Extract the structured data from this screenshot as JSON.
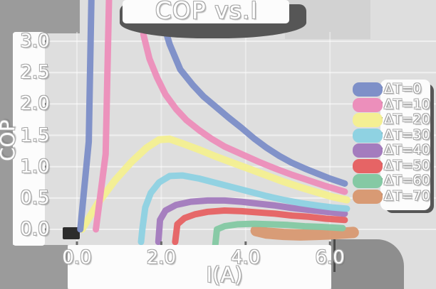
{
  "title": "COP vs.I",
  "x_axis": {
    "label": "I(A)",
    "ticks": [
      {
        "label": "0.0",
        "value": 0
      },
      {
        "label": "2.0",
        "value": 2
      },
      {
        "label": "4.0",
        "value": 4
      },
      {
        "label": "6.0",
        "value": 6
      }
    ]
  },
  "y_axis": {
    "label": "COP",
    "ticks": [
      {
        "label": "3.0",
        "value": 3.0
      },
      {
        "label": "2.5",
        "value": 2.5
      },
      {
        "label": "2.0",
        "value": 2.0
      },
      {
        "label": "1.5",
        "value": 1.5
      },
      {
        "label": "1.0",
        "value": 1.0
      },
      {
        "label": "0.5",
        "value": 0.5
      },
      {
        "label": "0.0",
        "value": 0.0
      }
    ]
  },
  "chart_data": {
    "type": "line",
    "title": "COP vs.I",
    "xlabel": "I(A)",
    "ylabel": "COP",
    "xlim": [
      -0.76,
      8.5
    ],
    "ylim": [
      -0.25,
      3.15
    ],
    "grid": true,
    "legend_position": "center right",
    "series": [
      {
        "name": "ΔT=0",
        "color": "#7e90c8",
        "stroke_width": 9,
        "points": [
          [
            0.08,
            0
          ],
          [
            0.28,
            1.4
          ],
          [
            0.36,
            4.3
          ],
          [
            1.85,
            4.3
          ],
          [
            2.02,
            3.35
          ],
          [
            2.2,
            2.95
          ],
          [
            2.45,
            2.55
          ],
          [
            2.75,
            2.3
          ],
          [
            3.0,
            2.12
          ],
          [
            3.3,
            1.95
          ],
          [
            3.6,
            1.78
          ],
          [
            3.9,
            1.62
          ],
          [
            4.2,
            1.45
          ],
          [
            4.5,
            1.3
          ],
          [
            4.8,
            1.17
          ],
          [
            5.1,
            1.06
          ],
          [
            5.4,
            0.97
          ],
          [
            5.7,
            0.89
          ],
          [
            6.0,
            0.81
          ],
          [
            6.35,
            0.73
          ]
        ]
      },
      {
        "name": "ΔT=10",
        "color": "#ec8fbb",
        "stroke_width": 9,
        "points": [
          [
            0.45,
            0
          ],
          [
            0.68,
            1.2
          ],
          [
            0.78,
            4.3
          ],
          [
            1.45,
            4.3
          ],
          [
            1.58,
            3.1
          ],
          [
            1.72,
            2.72
          ],
          [
            1.9,
            2.42
          ],
          [
            2.1,
            2.15
          ],
          [
            2.35,
            1.92
          ],
          [
            2.6,
            1.74
          ],
          [
            2.9,
            1.58
          ],
          [
            3.2,
            1.44
          ],
          [
            3.5,
            1.32
          ],
          [
            3.9,
            1.2
          ],
          [
            4.3,
            1.08
          ],
          [
            4.7,
            0.97
          ],
          [
            5.1,
            0.87
          ],
          [
            5.5,
            0.78
          ],
          [
            5.9,
            0.69
          ],
          [
            6.35,
            0.6
          ]
        ]
      },
      {
        "name": "ΔT=20",
        "color": "#f4ef93",
        "stroke_width": 10,
        "points": [
          [
            0.12,
            0
          ],
          [
            0.5,
            0.42
          ],
          [
            0.9,
            0.78
          ],
          [
            1.3,
            1.08
          ],
          [
            1.65,
            1.3
          ],
          [
            1.95,
            1.43
          ],
          [
            2.2,
            1.44
          ],
          [
            2.5,
            1.37
          ],
          [
            2.9,
            1.27
          ],
          [
            3.3,
            1.16
          ],
          [
            3.7,
            1.06
          ],
          [
            4.1,
            0.96
          ],
          [
            4.5,
            0.86
          ],
          [
            4.9,
            0.76
          ],
          [
            5.3,
            0.67
          ],
          [
            5.7,
            0.59
          ],
          [
            6.05,
            0.52
          ],
          [
            6.4,
            0.47
          ]
        ]
      },
      {
        "name": "ΔT=30",
        "color": "#8fd2e2",
        "stroke_width": 9,
        "points": [
          [
            1.52,
            -0.2
          ],
          [
            1.55,
            0
          ],
          [
            1.62,
            0.35
          ],
          [
            1.75,
            0.58
          ],
          [
            1.95,
            0.75
          ],
          [
            2.2,
            0.85
          ],
          [
            2.5,
            0.86
          ],
          [
            2.9,
            0.81
          ],
          [
            3.3,
            0.74
          ],
          [
            3.7,
            0.67
          ],
          [
            4.1,
            0.6
          ],
          [
            4.5,
            0.53
          ],
          [
            4.9,
            0.47
          ],
          [
            5.3,
            0.42
          ],
          [
            5.7,
            0.38
          ],
          [
            6.05,
            0.35
          ],
          [
            6.4,
            0.33
          ]
        ]
      },
      {
        "name": "ΔT=40",
        "color": "#a47cbe",
        "stroke_width": 9,
        "points": [
          [
            1.93,
            -0.2
          ],
          [
            1.97,
            0.15
          ],
          [
            2.1,
            0.3
          ],
          [
            2.35,
            0.39
          ],
          [
            2.7,
            0.44
          ],
          [
            3.1,
            0.46
          ],
          [
            3.5,
            0.46
          ],
          [
            3.9,
            0.44
          ],
          [
            4.3,
            0.41
          ],
          [
            4.7,
            0.38
          ],
          [
            5.1,
            0.34
          ],
          [
            5.5,
            0.31
          ],
          [
            5.9,
            0.28
          ],
          [
            6.35,
            0.25
          ]
        ]
      },
      {
        "name": "ΔT=50",
        "color": "#e66465",
        "stroke_width": 9,
        "points": [
          [
            2.33,
            -0.2
          ],
          [
            2.38,
            0.08
          ],
          [
            2.55,
            0.18
          ],
          [
            2.8,
            0.24
          ],
          [
            3.1,
            0.28
          ],
          [
            3.5,
            0.3
          ],
          [
            3.9,
            0.29
          ],
          [
            4.3,
            0.27
          ],
          [
            4.7,
            0.25
          ],
          [
            5.1,
            0.22
          ],
          [
            5.5,
            0.2
          ],
          [
            5.9,
            0.17
          ],
          [
            6.35,
            0.15
          ]
        ]
      },
      {
        "name": "ΔT=60",
        "color": "#85c9a4",
        "stroke_width": 9,
        "points": [
          [
            3.28,
            -0.25
          ],
          [
            3.32,
            0.0
          ],
          [
            3.5,
            0.05
          ],
          [
            3.8,
            0.08
          ],
          [
            4.2,
            0.09
          ],
          [
            4.6,
            0.08
          ],
          [
            5.0,
            0.07
          ],
          [
            5.4,
            0.05
          ],
          [
            5.8,
            0.04
          ],
          [
            6.3,
            0.02
          ]
        ]
      },
      {
        "name": "ΔT=70",
        "color": "#d89a74",
        "stroke_width": 16,
        "points": [
          [
            4.25,
            -0.02
          ],
          [
            4.5,
            -0.06
          ],
          [
            4.9,
            -0.08
          ],
          [
            5.3,
            -0.09
          ],
          [
            5.7,
            -0.08
          ],
          [
            6.1,
            -0.07
          ],
          [
            6.55,
            -0.05
          ]
        ]
      }
    ]
  }
}
